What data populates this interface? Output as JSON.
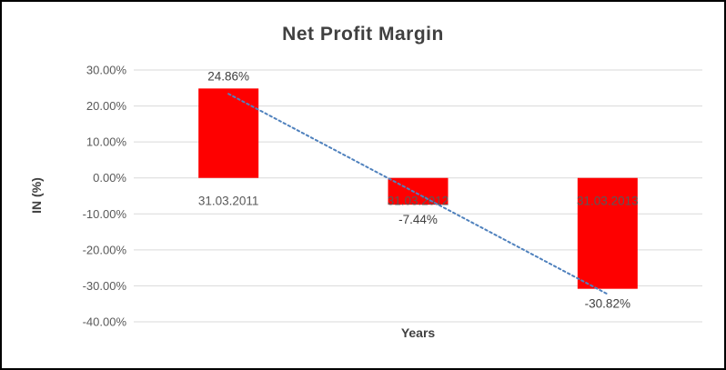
{
  "chart_data": {
    "type": "bar",
    "title": "Net Profit Margin",
    "xlabel": "Years",
    "ylabel": "IN (%)",
    "categories": [
      "31.03.2011",
      "31.03.2012",
      "31.03.2013"
    ],
    "values": [
      24.86,
      -7.44,
      -30.82
    ],
    "value_labels": [
      "24.86%",
      "-7.44%",
      "-30.82%"
    ],
    "y_ticks": [
      30,
      20,
      10,
      0,
      -10,
      -20,
      -30,
      -40
    ],
    "y_tick_labels": [
      "30.00%",
      "20.00%",
      "10.00%",
      "0.00%",
      "-10.00%",
      "-20.00%",
      "-30.00%",
      "-40.00%"
    ],
    "ylim": [
      -40,
      30
    ],
    "grid": true,
    "legend": false,
    "trendline": true,
    "colors": {
      "bar": "#fe0000",
      "trend": "#4f81bd",
      "grid": "#d9d9d9",
      "axis_text": "#595959",
      "title": "#404040",
      "data_label": "#404040"
    }
  }
}
